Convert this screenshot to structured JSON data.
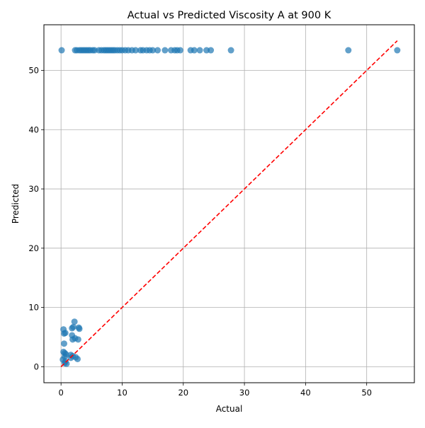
{
  "chart_data": {
    "type": "scatter",
    "title": "Actual vs Predicted Viscosity A at 900 K",
    "xlabel": "Actual",
    "ylabel": "Predicted",
    "xlim": [
      -2.8,
      57.8
    ],
    "ylim": [
      -2.7,
      57.7
    ],
    "xticks": [
      0,
      10,
      20,
      30,
      40,
      50
    ],
    "yticks": [
      0,
      10,
      20,
      30,
      40,
      50
    ],
    "grid": true,
    "colors": {
      "points": "#1f77b4",
      "reference_line": "#ff0000",
      "grid": "#b0b0b0"
    },
    "reference_line": {
      "style": "dashed",
      "x": [
        0,
        55
      ],
      "y": [
        0,
        55
      ]
    },
    "points": [
      {
        "x": 0.1,
        "y": 53.4
      },
      {
        "x": 2.3,
        "y": 53.4
      },
      {
        "x": 2.6,
        "y": 53.4
      },
      {
        "x": 3.0,
        "y": 53.4
      },
      {
        "x": 3.3,
        "y": 53.4
      },
      {
        "x": 3.6,
        "y": 53.4
      },
      {
        "x": 3.9,
        "y": 53.4
      },
      {
        "x": 4.2,
        "y": 53.4
      },
      {
        "x": 4.5,
        "y": 53.4
      },
      {
        "x": 4.8,
        "y": 53.4
      },
      {
        "x": 5.2,
        "y": 53.4
      },
      {
        "x": 5.5,
        "y": 53.4
      },
      {
        "x": 6.2,
        "y": 53.4
      },
      {
        "x": 6.6,
        "y": 53.4
      },
      {
        "x": 7.0,
        "y": 53.4
      },
      {
        "x": 7.3,
        "y": 53.4
      },
      {
        "x": 7.6,
        "y": 53.4
      },
      {
        "x": 7.9,
        "y": 53.4
      },
      {
        "x": 8.2,
        "y": 53.4
      },
      {
        "x": 8.5,
        "y": 53.4
      },
      {
        "x": 8.8,
        "y": 53.4
      },
      {
        "x": 9.2,
        "y": 53.4
      },
      {
        "x": 9.6,
        "y": 53.4
      },
      {
        "x": 10.0,
        "y": 53.4
      },
      {
        "x": 10.5,
        "y": 53.4
      },
      {
        "x": 11.0,
        "y": 53.4
      },
      {
        "x": 11.6,
        "y": 53.4
      },
      {
        "x": 12.2,
        "y": 53.4
      },
      {
        "x": 13.0,
        "y": 53.4
      },
      {
        "x": 13.4,
        "y": 53.4
      },
      {
        "x": 14.0,
        "y": 53.4
      },
      {
        "x": 14.5,
        "y": 53.4
      },
      {
        "x": 15.0,
        "y": 53.4
      },
      {
        "x": 15.8,
        "y": 53.4
      },
      {
        "x": 17.0,
        "y": 53.4
      },
      {
        "x": 18.0,
        "y": 53.4
      },
      {
        "x": 18.6,
        "y": 53.4
      },
      {
        "x": 19.0,
        "y": 53.4
      },
      {
        "x": 19.5,
        "y": 53.4
      },
      {
        "x": 21.2,
        "y": 53.4
      },
      {
        "x": 21.8,
        "y": 53.4
      },
      {
        "x": 22.7,
        "y": 53.4
      },
      {
        "x": 23.8,
        "y": 53.4
      },
      {
        "x": 24.5,
        "y": 53.4
      },
      {
        "x": 27.8,
        "y": 53.4
      },
      {
        "x": 47.0,
        "y": 53.4
      },
      {
        "x": 55.0,
        "y": 53.4
      },
      {
        "x": 0.4,
        "y": 6.3
      },
      {
        "x": 0.5,
        "y": 5.6
      },
      {
        "x": 0.7,
        "y": 5.7
      },
      {
        "x": 0.5,
        "y": 3.9
      },
      {
        "x": 0.4,
        "y": 2.5
      },
      {
        "x": 0.6,
        "y": 2.3
      },
      {
        "x": 0.8,
        "y": 2.1
      },
      {
        "x": 0.6,
        "y": 1.7
      },
      {
        "x": 0.3,
        "y": 1.2
      },
      {
        "x": 0.7,
        "y": 0.9
      },
      {
        "x": 0.6,
        "y": 0.6
      },
      {
        "x": 0.9,
        "y": 0.5
      },
      {
        "x": 1.8,
        "y": 6.5
      },
      {
        "x": 2.0,
        "y": 6.7
      },
      {
        "x": 2.2,
        "y": 7.6
      },
      {
        "x": 2.9,
        "y": 6.6
      },
      {
        "x": 3.0,
        "y": 6.4
      },
      {
        "x": 1.8,
        "y": 5.3
      },
      {
        "x": 1.9,
        "y": 4.6
      },
      {
        "x": 2.3,
        "y": 4.8
      },
      {
        "x": 2.8,
        "y": 4.6
      },
      {
        "x": 1.6,
        "y": 2.0
      },
      {
        "x": 1.9,
        "y": 1.8
      },
      {
        "x": 1.6,
        "y": 1.5
      },
      {
        "x": 2.4,
        "y": 1.6
      },
      {
        "x": 2.7,
        "y": 1.3
      }
    ]
  }
}
